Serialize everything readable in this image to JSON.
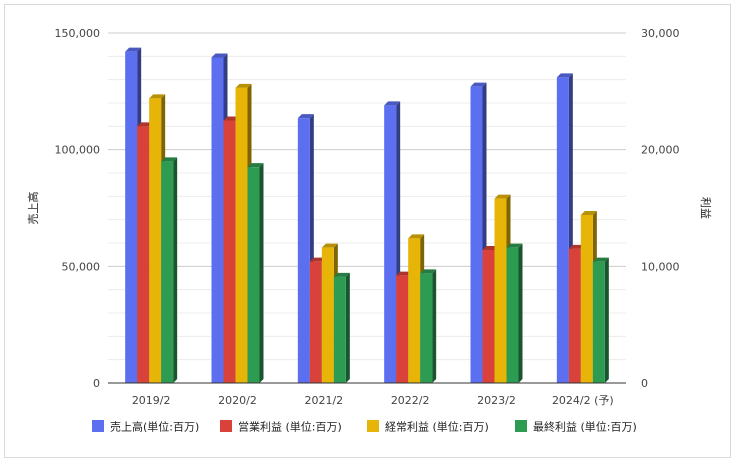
{
  "chart_data": {
    "type": "bar",
    "style": "3d-clustered",
    "categories": [
      "2019/2",
      "2020/2",
      "2021/2",
      "2022/2",
      "2023/2",
      "2024/2 (予)"
    ],
    "series": [
      {
        "name": "売上高(単位:百万)",
        "axis": "left",
        "color": "#5b6ff0",
        "values": [
          142000,
          139500,
          113500,
          119000,
          127000,
          131000
        ]
      },
      {
        "name": "営業利益 (単位:百万)",
        "axis": "right",
        "color": "#d8423a",
        "values": [
          22000,
          22500,
          10400,
          9200,
          11400,
          11500
        ]
      },
      {
        "name": "経常利益 (単位:百万)",
        "axis": "right",
        "color": "#e6b507",
        "values": [
          24400,
          25300,
          11600,
          12400,
          15800,
          14400
        ]
      },
      {
        "name": "最終利益 (単位:百万)",
        "axis": "right",
        "color": "#2e9b53",
        "values": [
          19000,
          18500,
          9100,
          9400,
          11600,
          10400
        ]
      }
    ],
    "y_left": {
      "label": "売上高",
      "ylim": [
        0,
        150000
      ],
      "ticks": [
        "0",
        "50,000",
        "100,000",
        "150,000"
      ],
      "tick_values": [
        0,
        50000,
        100000,
        150000
      ]
    },
    "y_right": {
      "label": "利益",
      "ylim": [
        0,
        30000
      ],
      "ticks": [
        "0",
        "10,000",
        "20,000",
        "30,000"
      ],
      "tick_values": [
        0,
        10000,
        20000,
        30000
      ]
    },
    "grid": true,
    "legend_position": "bottom"
  }
}
